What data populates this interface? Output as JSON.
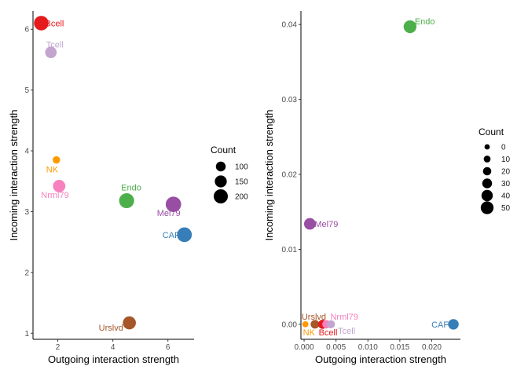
{
  "chart_data": [
    {
      "type": "scatter",
      "xlabel": "Outgoing interaction strength",
      "ylabel": "Incoming interaction strength",
      "xlim": [
        1.1,
        6.95
      ],
      "ylim": [
        0.9,
        6.3
      ],
      "xticks": [
        2,
        4,
        6
      ],
      "yticks": [
        1,
        2,
        3,
        4,
        5,
        6
      ],
      "points": [
        {
          "label": "Bcell",
          "x": 1.4,
          "y": 6.1,
          "count": 210,
          "color": "#e41a1c"
        },
        {
          "label": "Tcell",
          "x": 1.75,
          "y": 5.62,
          "count": 140,
          "color": "#c2a5cf"
        },
        {
          "label": "NK",
          "x": 1.95,
          "y": 3.85,
          "count": 45,
          "color": "#ff9900"
        },
        {
          "label": "Nrml79",
          "x": 2.05,
          "y": 3.42,
          "count": 160,
          "color": "#f781bf"
        },
        {
          "label": "Endo",
          "x": 4.5,
          "y": 3.18,
          "count": 220,
          "color": "#4daf4a"
        },
        {
          "label": "Mel79",
          "x": 6.2,
          "y": 3.12,
          "count": 230,
          "color": "#984ea3"
        },
        {
          "label": "CAF",
          "x": 6.6,
          "y": 2.62,
          "count": 215,
          "color": "#377eb8"
        },
        {
          "label": "Urslvd",
          "x": 4.6,
          "y": 1.17,
          "count": 175,
          "color": "#a65628"
        }
      ],
      "legend": {
        "title": "Count",
        "sizes": [
          100,
          150,
          200
        ],
        "position": "right"
      }
    },
    {
      "type": "scatter",
      "xlabel": "Outgoing interaction strength",
      "ylabel": "Incoming interaction strength",
      "xlim": [
        -0.0005,
        0.0245
      ],
      "ylim": [
        -0.002,
        0.0418
      ],
      "xticks": [
        "0.000",
        "0.005",
        "0.010",
        "0.015",
        "0.020"
      ],
      "xtick_values": [
        0,
        0.005,
        0.01,
        0.015,
        0.02
      ],
      "yticks": [
        "0.00",
        "0.01",
        "0.02",
        "0.03",
        "0.04"
      ],
      "ytick_values": [
        0,
        0.01,
        0.02,
        0.03,
        0.04
      ],
      "points": [
        {
          "label": "Endo",
          "x": 0.0166,
          "y": 0.0397,
          "count": 50,
          "color": "#4daf4a"
        },
        {
          "label": "Mel79",
          "x": 0.0009,
          "y": 0.0134,
          "count": 42,
          "color": "#984ea3"
        },
        {
          "label": "CAF",
          "x": 0.0234,
          "y": 0.0,
          "count": 35,
          "color": "#377eb8"
        },
        {
          "label": "Urslvd",
          "x": 0.0017,
          "y": 0.0,
          "count": 22,
          "color": "#a65628"
        },
        {
          "label": "NK",
          "x": 0.0002,
          "y": 0.0,
          "count": 5,
          "color": "#ff9900"
        },
        {
          "label": "Bcell",
          "x": 0.0029,
          "y": 0.0,
          "count": 25,
          "color": "#e41a1c"
        },
        {
          "label": "Nrml79",
          "x": 0.0035,
          "y": 0.0,
          "count": 20,
          "color": "#f781bf"
        },
        {
          "label": "Tcell",
          "x": 0.0042,
          "y": 0.0,
          "count": 18,
          "color": "#c2a5cf"
        }
      ],
      "legend": {
        "title": "Count",
        "sizes": [
          0,
          10,
          20,
          30,
          40,
          50
        ],
        "position": "right"
      }
    }
  ]
}
